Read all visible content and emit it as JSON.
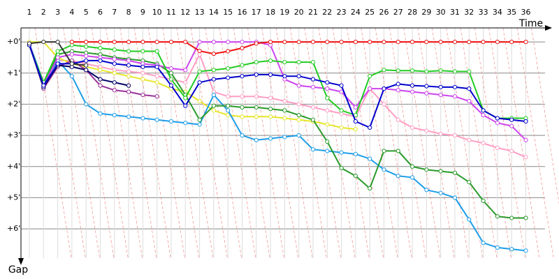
{
  "chart_data": {
    "type": "line",
    "x_label": "Time",
    "y_label": "Gap",
    "categories": [
      "1",
      "2",
      "3",
      "4",
      "5",
      "6",
      "7",
      "8",
      "9",
      "10",
      "11",
      "12",
      "13",
      "14",
      "15",
      "16",
      "17",
      "18",
      "19",
      "20",
      "21",
      "22",
      "23",
      "24",
      "25",
      "26",
      "27",
      "28",
      "29",
      "30",
      "31",
      "32",
      "33",
      "34",
      "35",
      "36"
    ],
    "ylim": [
      -0.45,
      7.05
    ],
    "y_inverted": true,
    "grid": true,
    "yticks": [
      {
        "value": 0,
        "label": "+0'"
      },
      {
        "value": 1,
        "label": "+1'"
      },
      {
        "value": 2,
        "label": "+2'"
      },
      {
        "value": 3,
        "label": "+3'"
      },
      {
        "value": 4,
        "label": "+4'"
      },
      {
        "value": 5,
        "label": "+5'"
      },
      {
        "value": 6,
        "label": "+6'"
      }
    ],
    "series": [
      {
        "color": "#ff9ec4",
        "values": [
          0.1,
          1.3,
          0.6,
          0.6,
          0.7,
          0.8,
          0.9,
          0.95,
          1.0,
          1.1,
          1.2,
          1.3,
          0.4,
          1.6,
          1.75,
          1.75,
          1.75,
          1.8,
          1.9,
          2.0,
          2.1,
          2.2,
          2.3,
          2.4,
          1.5,
          2.0,
          2.5,
          2.75,
          2.85,
          2.95,
          3.0,
          3.15,
          3.25,
          3.4,
          3.5,
          3.7
        ]
      },
      {
        "color": "#e6e62a",
        "values": [
          0,
          0,
          0.5,
          0.7,
          0.8,
          0.9,
          1.0,
          1.1,
          1.2,
          1.3,
          1.5,
          1.6,
          1.9,
          2.2,
          2.35,
          2.4,
          2.4,
          2.4,
          2.45,
          2.5,
          2.55,
          2.65,
          2.75,
          2.8,
          null,
          null,
          null,
          null,
          null,
          null,
          null,
          null,
          null,
          null,
          null,
          null
        ]
      },
      {
        "color": "#1e9ee8",
        "values": [
          0.05,
          1.3,
          0.6,
          1.1,
          2.0,
          2.3,
          2.35,
          2.4,
          2.45,
          2.5,
          2.55,
          2.6,
          2.65,
          1.7,
          2.2,
          3.0,
          3.15,
          3.1,
          3.05,
          3.0,
          3.45,
          3.5,
          3.55,
          3.6,
          3.75,
          4.1,
          4.3,
          4.35,
          4.75,
          4.85,
          5.0,
          5.7,
          6.45,
          6.6,
          6.65,
          6.7
        ]
      },
      {
        "color": "#2a9a2a",
        "values": [
          0.1,
          1.4,
          0.4,
          0.3,
          0.35,
          0.4,
          0.5,
          0.55,
          0.6,
          0.7,
          1.0,
          1.7,
          2.5,
          2.05,
          2.05,
          2.1,
          2.1,
          2.15,
          2.2,
          2.35,
          2.5,
          3.2,
          4.05,
          4.3,
          4.7,
          3.5,
          3.5,
          4.0,
          4.1,
          4.15,
          4.2,
          4.5,
          5.1,
          5.6,
          5.65,
          5.65
        ]
      },
      {
        "color": "#993399",
        "values": [
          0.05,
          1.5,
          0.8,
          0.6,
          0.9,
          1.4,
          1.55,
          1.6,
          1.7,
          1.75,
          null,
          null,
          null,
          null,
          null,
          null,
          null,
          null,
          null,
          null,
          null,
          null,
          null,
          null,
          null,
          null,
          null,
          null,
          null,
          null,
          null,
          null,
          null,
          null,
          null,
          null
        ]
      },
      {
        "color": "#000066",
        "values": [
          0.1,
          1.45,
          0.75,
          0.8,
          0.9,
          1.2,
          1.3,
          1.4,
          null,
          null,
          null,
          null,
          null,
          null,
          null,
          null,
          null,
          null,
          null,
          null,
          null,
          null,
          null,
          null,
          null,
          null,
          null,
          null,
          null,
          null,
          null,
          null,
          null,
          null,
          null,
          null
        ]
      },
      {
        "color": "#cc44ee",
        "values": [
          0.05,
          1.4,
          0.5,
          0.4,
          0.45,
          0.5,
          0.55,
          0.6,
          0.7,
          0.75,
          0.85,
          0.9,
          0,
          0,
          0,
          0,
          0,
          0.1,
          1.2,
          1.4,
          1.45,
          1.5,
          1.6,
          2.1,
          1.5,
          1.5,
          1.55,
          1.6,
          1.65,
          1.7,
          1.75,
          1.9,
          2.35,
          2.6,
          2.7,
          3.15
        ]
      },
      {
        "color": "#22cc22",
        "values": [
          0.1,
          1.3,
          0.3,
          0.1,
          0.15,
          0.2,
          0.25,
          0.3,
          0.3,
          0.3,
          1.2,
          1.8,
          0.95,
          0.9,
          0.85,
          0.75,
          0.65,
          0.6,
          0.65,
          0.65,
          0.65,
          1.8,
          2.2,
          2.35,
          1.1,
          0.9,
          0.92,
          0.92,
          0.95,
          0.92,
          0.95,
          0.95,
          2.2,
          2.45,
          2.45,
          2.45
        ]
      },
      {
        "color": "#0000cc",
        "values": [
          0.1,
          1.4,
          0.7,
          0.7,
          0.6,
          0.6,
          0.7,
          0.75,
          0.8,
          0.8,
          1.4,
          2.05,
          1.3,
          1.2,
          1.15,
          1.1,
          1.05,
          1.05,
          1.1,
          1.1,
          1.2,
          1.3,
          1.4,
          2.55,
          2.75,
          1.5,
          1.35,
          1.4,
          1.42,
          1.45,
          1.45,
          1.5,
          2.2,
          2.45,
          2.5,
          2.55
        ]
      },
      {
        "color": "#333333",
        "values": [
          0.05,
          0,
          0,
          0.7,
          0.75,
          null,
          null,
          null,
          null,
          null,
          null,
          null,
          null,
          null,
          null,
          null,
          null,
          null,
          null,
          null,
          null,
          null,
          null,
          null,
          null,
          null,
          null,
          null,
          null,
          null,
          null,
          null,
          null,
          null,
          null,
          null
        ]
      },
      {
        "color": "#ee1111",
        "values": [
          null,
          null,
          null,
          0,
          0,
          0,
          0,
          0,
          0,
          0,
          0,
          0,
          0.29,
          0.38,
          0.3,
          0.2,
          0.05,
          0,
          0,
          0,
          0,
          0,
          0,
          0,
          0,
          0,
          0,
          0,
          0,
          0,
          0,
          0,
          0,
          0,
          0,
          0
        ]
      }
    ]
  }
}
